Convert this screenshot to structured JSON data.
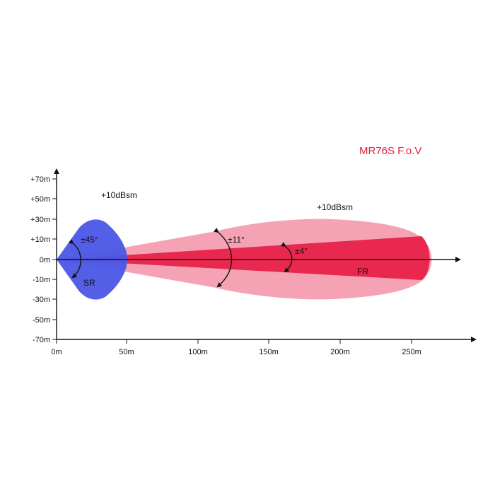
{
  "title": "MR76S  F.o.V",
  "colors": {
    "title": "#e0203a",
    "sr": "#4a56e6",
    "fr_wide": "#f5a3b4",
    "fr_narrow": "#e8284e",
    "axis": "#111111"
  },
  "axes": {
    "x_ticks": [
      "0m",
      "50m",
      "100m",
      "150m",
      "200m",
      "250m"
    ],
    "y_ticks": [
      "+70m",
      "+50m",
      "+30m",
      "+10m",
      "0m",
      "-10m",
      "-30m",
      "-50m",
      "-70m"
    ]
  },
  "annotations": {
    "rcs_sr": "+10dBsm",
    "rcs_fr": "+10dBsm",
    "angle_sr": "±45°",
    "angle_fr_wide": "±11°",
    "angle_fr_narrow": "±4°",
    "sr_label": "SR",
    "fr_label": "FR"
  }
}
